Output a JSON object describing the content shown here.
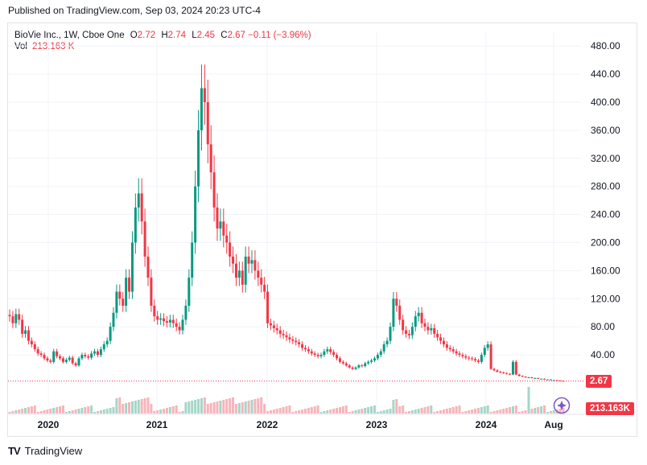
{
  "published": "Published on TradingView.com, Sep 03, 2024 20:23 UTC-4",
  "legend": {
    "symbol": "BioVie Inc., 1W, Cboe One",
    "o_label": "O",
    "o_value": "2.72",
    "h_label": "H",
    "h_value": "2.74",
    "l_label": "L",
    "l_value": "2.45",
    "c_label": "C",
    "c_value": "2.67",
    "change": "−0.11 (−3.96%)",
    "vol_label": "Vol",
    "vol_value": "213.163 K"
  },
  "badges": {
    "price": "2.67",
    "volume": "213.163K"
  },
  "brand": {
    "name": "TradingView",
    "logo": "TV"
  },
  "colors": {
    "up": "#089981",
    "down": "#f23645",
    "up_vol": "#a5d6c8",
    "down_vol": "#f7b4b9",
    "grid": "#f0f3fa"
  },
  "chart_data": {
    "type": "candlestick",
    "yticks": [
      "480.00",
      "440.00",
      "400.00",
      "360.00",
      "320.00",
      "280.00",
      "240.00",
      "200.00",
      "160.00",
      "120.00",
      "80.00",
      "40.00",
      "0"
    ],
    "ylim": [
      0,
      480
    ],
    "xticks": [
      "2020",
      "2021",
      "2022",
      "2023",
      "2024",
      "Aug"
    ],
    "last_price": 2.67,
    "series_close_weekly": [
      95,
      85,
      98,
      90,
      70,
      75,
      60,
      55,
      48,
      42,
      40,
      35,
      32,
      30,
      45,
      38,
      35,
      30,
      33,
      36,
      28,
      25,
      35,
      40,
      38,
      36,
      42,
      45,
      40,
      48,
      55,
      60,
      80,
      100,
      130,
      120,
      110,
      150,
      130,
      200,
      250,
      270,
      230,
      180,
      150,
      110,
      95,
      90,
      92,
      88,
      86,
      90,
      85,
      80,
      75,
      90,
      110,
      150,
      200,
      280,
      360,
      420,
      400,
      340,
      300,
      250,
      220,
      230,
      210,
      200,
      180,
      170,
      150,
      160,
      140,
      180,
      170,
      175,
      160,
      150,
      140,
      130,
      85,
      82,
      78,
      75,
      70,
      68,
      65,
      62,
      60,
      58,
      55,
      50,
      48,
      45,
      42,
      40,
      38,
      40,
      45,
      48,
      44,
      40,
      35,
      30,
      28,
      25,
      22,
      20,
      22,
      25,
      24,
      28,
      30,
      32,
      35,
      40,
      45,
      55,
      60,
      80,
      120,
      110,
      90,
      75,
      70,
      68,
      80,
      95,
      100,
      85,
      80,
      75,
      78,
      70,
      65,
      60,
      55,
      50,
      48,
      45,
      42,
      40,
      38,
      36,
      35,
      34,
      32,
      30,
      40,
      50,
      55,
      20,
      18,
      16,
      15,
      14,
      13,
      12,
      30,
      12,
      10,
      9,
      8,
      8,
      7,
      7,
      6,
      6,
      5,
      5,
      4,
      4,
      3.5,
      3,
      2.67
    ]
  }
}
